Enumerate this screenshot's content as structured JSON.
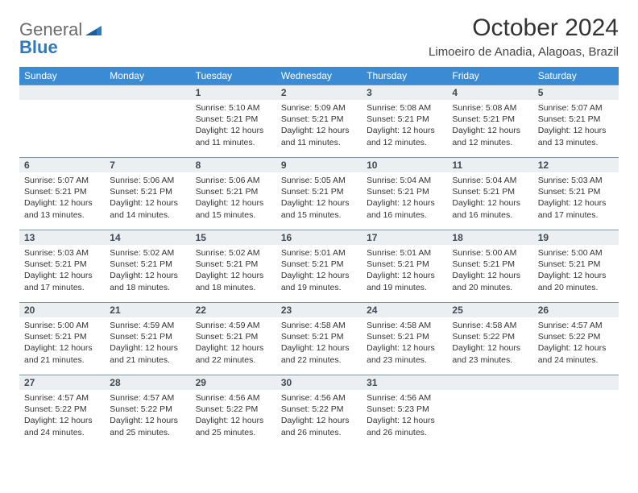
{
  "logo": {
    "text1": "General",
    "text2": "Blue"
  },
  "title": "October 2024",
  "location": "Limoeiro de Anadia, Alagoas, Brazil",
  "colors": {
    "header_bg": "#3b8bd4",
    "header_text": "#ffffff",
    "daynum_bg": "#eceff1",
    "daynum_border": "#7a97b0",
    "page_bg": "#ffffff",
    "logo_blue": "#2f79c2",
    "logo_gray": "#6b6b6b"
  },
  "weekdays": [
    "Sunday",
    "Monday",
    "Tuesday",
    "Wednesday",
    "Thursday",
    "Friday",
    "Saturday"
  ],
  "weeks": [
    [
      null,
      null,
      {
        "n": "1",
        "sr": "Sunrise: 5:10 AM",
        "ss": "Sunset: 5:21 PM",
        "dl": "Daylight: 12 hours and 11 minutes."
      },
      {
        "n": "2",
        "sr": "Sunrise: 5:09 AM",
        "ss": "Sunset: 5:21 PM",
        "dl": "Daylight: 12 hours and 11 minutes."
      },
      {
        "n": "3",
        "sr": "Sunrise: 5:08 AM",
        "ss": "Sunset: 5:21 PM",
        "dl": "Daylight: 12 hours and 12 minutes."
      },
      {
        "n": "4",
        "sr": "Sunrise: 5:08 AM",
        "ss": "Sunset: 5:21 PM",
        "dl": "Daylight: 12 hours and 12 minutes."
      },
      {
        "n": "5",
        "sr": "Sunrise: 5:07 AM",
        "ss": "Sunset: 5:21 PM",
        "dl": "Daylight: 12 hours and 13 minutes."
      }
    ],
    [
      {
        "n": "6",
        "sr": "Sunrise: 5:07 AM",
        "ss": "Sunset: 5:21 PM",
        "dl": "Daylight: 12 hours and 13 minutes."
      },
      {
        "n": "7",
        "sr": "Sunrise: 5:06 AM",
        "ss": "Sunset: 5:21 PM",
        "dl": "Daylight: 12 hours and 14 minutes."
      },
      {
        "n": "8",
        "sr": "Sunrise: 5:06 AM",
        "ss": "Sunset: 5:21 PM",
        "dl": "Daylight: 12 hours and 15 minutes."
      },
      {
        "n": "9",
        "sr": "Sunrise: 5:05 AM",
        "ss": "Sunset: 5:21 PM",
        "dl": "Daylight: 12 hours and 15 minutes."
      },
      {
        "n": "10",
        "sr": "Sunrise: 5:04 AM",
        "ss": "Sunset: 5:21 PM",
        "dl": "Daylight: 12 hours and 16 minutes."
      },
      {
        "n": "11",
        "sr": "Sunrise: 5:04 AM",
        "ss": "Sunset: 5:21 PM",
        "dl": "Daylight: 12 hours and 16 minutes."
      },
      {
        "n": "12",
        "sr": "Sunrise: 5:03 AM",
        "ss": "Sunset: 5:21 PM",
        "dl": "Daylight: 12 hours and 17 minutes."
      }
    ],
    [
      {
        "n": "13",
        "sr": "Sunrise: 5:03 AM",
        "ss": "Sunset: 5:21 PM",
        "dl": "Daylight: 12 hours and 17 minutes."
      },
      {
        "n": "14",
        "sr": "Sunrise: 5:02 AM",
        "ss": "Sunset: 5:21 PM",
        "dl": "Daylight: 12 hours and 18 minutes."
      },
      {
        "n": "15",
        "sr": "Sunrise: 5:02 AM",
        "ss": "Sunset: 5:21 PM",
        "dl": "Daylight: 12 hours and 18 minutes."
      },
      {
        "n": "16",
        "sr": "Sunrise: 5:01 AM",
        "ss": "Sunset: 5:21 PM",
        "dl": "Daylight: 12 hours and 19 minutes."
      },
      {
        "n": "17",
        "sr": "Sunrise: 5:01 AM",
        "ss": "Sunset: 5:21 PM",
        "dl": "Daylight: 12 hours and 19 minutes."
      },
      {
        "n": "18",
        "sr": "Sunrise: 5:00 AM",
        "ss": "Sunset: 5:21 PM",
        "dl": "Daylight: 12 hours and 20 minutes."
      },
      {
        "n": "19",
        "sr": "Sunrise: 5:00 AM",
        "ss": "Sunset: 5:21 PM",
        "dl": "Daylight: 12 hours and 20 minutes."
      }
    ],
    [
      {
        "n": "20",
        "sr": "Sunrise: 5:00 AM",
        "ss": "Sunset: 5:21 PM",
        "dl": "Daylight: 12 hours and 21 minutes."
      },
      {
        "n": "21",
        "sr": "Sunrise: 4:59 AM",
        "ss": "Sunset: 5:21 PM",
        "dl": "Daylight: 12 hours and 21 minutes."
      },
      {
        "n": "22",
        "sr": "Sunrise: 4:59 AM",
        "ss": "Sunset: 5:21 PM",
        "dl": "Daylight: 12 hours and 22 minutes."
      },
      {
        "n": "23",
        "sr": "Sunrise: 4:58 AM",
        "ss": "Sunset: 5:21 PM",
        "dl": "Daylight: 12 hours and 22 minutes."
      },
      {
        "n": "24",
        "sr": "Sunrise: 4:58 AM",
        "ss": "Sunset: 5:21 PM",
        "dl": "Daylight: 12 hours and 23 minutes."
      },
      {
        "n": "25",
        "sr": "Sunrise: 4:58 AM",
        "ss": "Sunset: 5:22 PM",
        "dl": "Daylight: 12 hours and 23 minutes."
      },
      {
        "n": "26",
        "sr": "Sunrise: 4:57 AM",
        "ss": "Sunset: 5:22 PM",
        "dl": "Daylight: 12 hours and 24 minutes."
      }
    ],
    [
      {
        "n": "27",
        "sr": "Sunrise: 4:57 AM",
        "ss": "Sunset: 5:22 PM",
        "dl": "Daylight: 12 hours and 24 minutes."
      },
      {
        "n": "28",
        "sr": "Sunrise: 4:57 AM",
        "ss": "Sunset: 5:22 PM",
        "dl": "Daylight: 12 hours and 25 minutes."
      },
      {
        "n": "29",
        "sr": "Sunrise: 4:56 AM",
        "ss": "Sunset: 5:22 PM",
        "dl": "Daylight: 12 hours and 25 minutes."
      },
      {
        "n": "30",
        "sr": "Sunrise: 4:56 AM",
        "ss": "Sunset: 5:22 PM",
        "dl": "Daylight: 12 hours and 26 minutes."
      },
      {
        "n": "31",
        "sr": "Sunrise: 4:56 AM",
        "ss": "Sunset: 5:23 PM",
        "dl": "Daylight: 12 hours and 26 minutes."
      },
      null,
      null
    ]
  ]
}
